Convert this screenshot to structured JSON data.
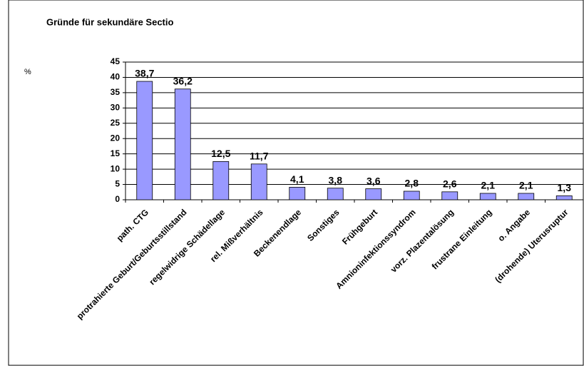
{
  "chart_data": {
    "type": "bar",
    "title": "Gründe für sekundäre Sectio",
    "y_label": "%",
    "categories": [
      "path. CTG",
      "protrahierte Geburt/Geburtsstillstand",
      "regelwidrige Schädellage",
      "rel. Mißverhältnis",
      "Beckenendlage",
      "Sonstiges",
      "Frühgeburt",
      "Amnioninfektionssyndrom",
      "vorz. Plazentalösung",
      "frustrane Einleitung",
      "o. Angabe",
      "(drohende) Uterusruptur"
    ],
    "values": [
      38.7,
      36.2,
      12.5,
      11.7,
      4.1,
      3.8,
      3.6,
      2.8,
      2.6,
      2.1,
      2.1,
      1.3
    ],
    "value_labels": [
      "38,7",
      "36,2",
      "12,5",
      "11,7",
      "4,1",
      "3,8",
      "3,6",
      "2,8",
      "2,6",
      "2,1",
      "2,1",
      "1,3"
    ],
    "color": "#9999ff",
    "ylim": [
      0,
      45
    ],
    "yticks": [
      0,
      5,
      10,
      15,
      20,
      25,
      30,
      35,
      40,
      45
    ],
    "grid": true
  }
}
